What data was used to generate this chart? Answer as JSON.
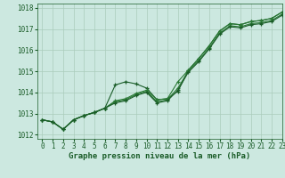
{
  "title": "Graphe pression niveau de la mer (hPa)",
  "background_color": "#cce8e0",
  "grid_color": "#aaccbb",
  "line_color_dark": "#1a5c28",
  "line_color_mid": "#2a7a35",
  "xlim": [
    -0.5,
    23
  ],
  "ylim": [
    1011.8,
    1018.2
  ],
  "yticks": [
    1012,
    1013,
    1014,
    1015,
    1016,
    1017,
    1018
  ],
  "xticks": [
    0,
    1,
    2,
    3,
    4,
    5,
    6,
    7,
    8,
    9,
    10,
    11,
    12,
    13,
    14,
    15,
    16,
    17,
    18,
    19,
    20,
    21,
    22,
    23
  ],
  "series": [
    [
      1012.7,
      1012.6,
      1012.25,
      1012.7,
      1012.9,
      1013.05,
      1013.25,
      1014.35,
      1014.5,
      1014.4,
      1014.2,
      1013.65,
      1013.7,
      1014.05,
      1015.05,
      1015.6,
      1016.2,
      1016.9,
      1017.25,
      1017.2,
      1017.35,
      1017.4,
      1017.5,
      1017.8
    ],
    [
      1012.7,
      1012.6,
      1012.25,
      1012.7,
      1012.9,
      1013.05,
      1013.25,
      1013.6,
      1013.7,
      1013.95,
      1014.1,
      1013.65,
      1013.7,
      1014.5,
      1015.05,
      1015.6,
      1016.2,
      1016.9,
      1017.25,
      1017.2,
      1017.35,
      1017.4,
      1017.5,
      1017.8
    ],
    [
      1012.7,
      1012.6,
      1012.25,
      1012.7,
      1012.9,
      1013.05,
      1013.25,
      1013.55,
      1013.65,
      1013.9,
      1014.05,
      1013.55,
      1013.65,
      1014.2,
      1015.0,
      1015.5,
      1016.1,
      1016.8,
      1017.15,
      1017.1,
      1017.25,
      1017.3,
      1017.4,
      1017.7
    ],
    [
      1012.7,
      1012.6,
      1012.25,
      1012.7,
      1012.9,
      1013.05,
      1013.25,
      1013.5,
      1013.6,
      1013.85,
      1014.0,
      1013.5,
      1013.6,
      1014.1,
      1014.95,
      1015.45,
      1016.05,
      1016.75,
      1017.1,
      1017.05,
      1017.2,
      1017.25,
      1017.35,
      1017.65
    ]
  ],
  "marker": "+",
  "markersize": 3.5,
  "linewidth": 0.8,
  "title_fontsize": 6.5,
  "tick_fontsize": 5.5
}
